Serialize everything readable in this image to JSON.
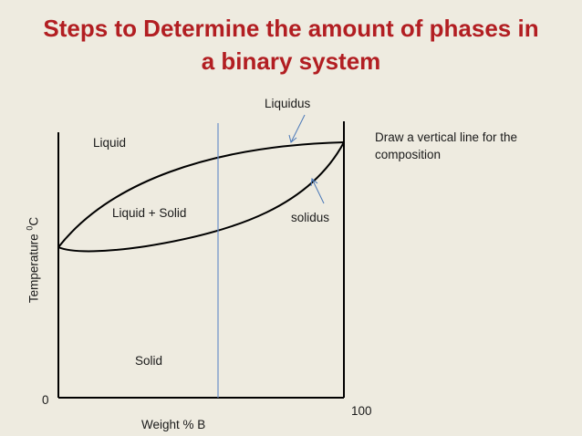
{
  "slide": {
    "title_line1": "Steps to Determine the amount of phases in",
    "title_line2": "a binary system",
    "instruction": "Draw a vertical line for the composition",
    "title_color": "#b21e22",
    "background_color": "#eeebe0"
  },
  "diagram": {
    "x_axis_label": "Weight % B",
    "y_axis_label": "Temperature ",
    "y_axis_unit_sup": "0",
    "y_axis_unit": "C",
    "x_tick_min": "0",
    "x_tick_max": "100",
    "region_liquid": "Liquid",
    "region_two_phase": "Liquid + Solid",
    "region_solid": "Solid",
    "label_liquidus": "Liquidus",
    "label_solidus": "solidus",
    "composition_line_color": "#6b8fc9",
    "pointer_color": "#4a78b8"
  }
}
